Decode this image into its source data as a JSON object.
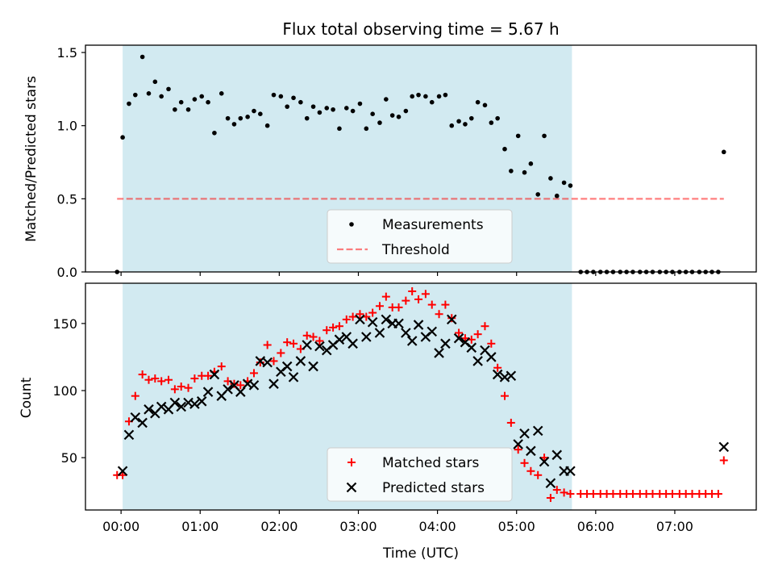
{
  "colors": {
    "shade": "#add8e6",
    "threshold": "#ff0000",
    "matched": "#ff0000",
    "predicted": "#000000",
    "measurement": "#000000"
  },
  "chart_data": [
    {
      "type": "scatter",
      "title": "Flux total observing time = 5.67 h",
      "xlabel": "",
      "ylabel": "Matched/Predicted stars",
      "xlim": [
        -0.45,
        8.03
      ],
      "ylim": [
        0,
        1.55
      ],
      "yticks": [
        "0.0",
        "0.5",
        "1.0",
        "1.5"
      ],
      "shaded_interval": [
        0.02,
        5.7
      ],
      "threshold": 0.5,
      "threshold_range": [
        -0.05,
        7.62
      ],
      "legend": {
        "position": "lower center",
        "entries": [
          "Measurements",
          "Threshold"
        ]
      },
      "series": [
        {
          "name": "Measurements",
          "x": [
            -0.05,
            0.02,
            0.1,
            0.18,
            0.27,
            0.35,
            0.43,
            0.51,
            0.6,
            0.68,
            0.76,
            0.85,
            0.93,
            1.02,
            1.1,
            1.18,
            1.27,
            1.35,
            1.43,
            1.51,
            1.6,
            1.68,
            1.76,
            1.85,
            1.93,
            2.02,
            2.1,
            2.18,
            2.27,
            2.35,
            2.43,
            2.51,
            2.6,
            2.68,
            2.76,
            2.85,
            2.93,
            3.02,
            3.1,
            3.18,
            3.27,
            3.35,
            3.43,
            3.51,
            3.6,
            3.68,
            3.76,
            3.85,
            3.93,
            4.02,
            4.1,
            4.18,
            4.27,
            4.35,
            4.43,
            4.51,
            4.6,
            4.68,
            4.76,
            4.85,
            4.93,
            5.02,
            5.1,
            5.18,
            5.27,
            5.35,
            5.43,
            5.51,
            5.6,
            5.68,
            5.81,
            5.89,
            5.97,
            6.06,
            6.14,
            6.22,
            6.31,
            6.39,
            6.47,
            6.56,
            6.64,
            6.72,
            6.81,
            6.89,
            6.97,
            7.06,
            7.14,
            7.22,
            7.31,
            7.39,
            7.47,
            7.55,
            7.62
          ],
          "y": [
            0.0,
            0.92,
            1.15,
            1.21,
            1.47,
            1.22,
            1.3,
            1.2,
            1.25,
            1.11,
            1.16,
            1.11,
            1.18,
            1.2,
            1.16,
            0.95,
            1.22,
            1.05,
            1.01,
            1.05,
            1.06,
            1.1,
            1.08,
            1.0,
            1.21,
            1.2,
            1.13,
            1.19,
            1.16,
            1.05,
            1.13,
            1.09,
            1.12,
            1.11,
            0.98,
            1.12,
            1.1,
            1.15,
            0.98,
            1.08,
            1.02,
            1.18,
            1.07,
            1.06,
            1.1,
            1.2,
            1.21,
            1.2,
            1.16,
            1.2,
            1.21,
            1.0,
            1.03,
            1.01,
            1.05,
            1.16,
            1.14,
            1.02,
            1.05,
            0.84,
            0.69,
            0.93,
            0.68,
            0.74,
            0.53,
            0.93,
            0.64,
            0.52,
            0.61,
            0.59,
            0.0,
            0.0,
            0.0,
            0.0,
            0.0,
            0.0,
            0.0,
            0.0,
            0.0,
            0.0,
            0.0,
            0.0,
            0.0,
            0.0,
            0.0,
            0.0,
            0.0,
            0.0,
            0.0,
            0.0,
            0.0,
            0.0,
            0.82
          ]
        }
      ]
    },
    {
      "type": "scatter",
      "title": "",
      "xlabel": "Time (UTC)",
      "ylabel": "Count",
      "xlim": [
        -0.45,
        8.03
      ],
      "ylim": [
        11,
        180
      ],
      "yticks": [
        "50",
        "100",
        "150"
      ],
      "xticks": [
        "00:00",
        "01:00",
        "02:00",
        "03:00",
        "04:00",
        "05:00",
        "06:00",
        "07:00"
      ],
      "shaded_interval": [
        0.02,
        5.7
      ],
      "legend": {
        "position": "lower center",
        "entries": [
          "Matched stars",
          "Predicted stars"
        ]
      },
      "series": [
        {
          "name": "Matched stars",
          "x": [
            -0.05,
            0.02,
            0.1,
            0.18,
            0.27,
            0.35,
            0.43,
            0.51,
            0.6,
            0.68,
            0.76,
            0.85,
            0.93,
            1.02,
            1.1,
            1.18,
            1.27,
            1.35,
            1.43,
            1.51,
            1.6,
            1.68,
            1.76,
            1.85,
            1.93,
            2.02,
            2.1,
            2.18,
            2.27,
            2.35,
            2.43,
            2.51,
            2.6,
            2.68,
            2.76,
            2.85,
            2.93,
            3.02,
            3.1,
            3.18,
            3.27,
            3.35,
            3.43,
            3.51,
            3.6,
            3.68,
            3.76,
            3.85,
            3.93,
            4.02,
            4.1,
            4.18,
            4.27,
            4.35,
            4.43,
            4.51,
            4.6,
            4.68,
            4.76,
            4.85,
            4.93,
            5.02,
            5.1,
            5.18,
            5.27,
            5.35,
            5.43,
            5.51,
            5.6,
            5.68,
            5.81,
            5.89,
            5.97,
            6.06,
            6.14,
            6.22,
            6.31,
            6.39,
            6.47,
            6.56,
            6.64,
            6.72,
            6.81,
            6.89,
            6.97,
            7.06,
            7.14,
            7.22,
            7.31,
            7.39,
            7.47,
            7.55,
            7.62
          ],
          "y": [
            37,
            37,
            77,
            96,
            112,
            108,
            109,
            107,
            108,
            101,
            103,
            102,
            109,
            111,
            111,
            114,
            118,
            107,
            105,
            104,
            107,
            113,
            121,
            134,
            122,
            128,
            136,
            135,
            131,
            141,
            140,
            137,
            145,
            147,
            148,
            153,
            155,
            157,
            155,
            158,
            163,
            170,
            162,
            162,
            167,
            174,
            168,
            172,
            164,
            157,
            164,
            154,
            143,
            139,
            138,
            142,
            148,
            135,
            117,
            96,
            76,
            56,
            46,
            40,
            37,
            50,
            20,
            26,
            24,
            23,
            23,
            23,
            23,
            23,
            23,
            23,
            23,
            23,
            23,
            23,
            23,
            23,
            23,
            23,
            23,
            23,
            23,
            23,
            23,
            23,
            23,
            23,
            48
          ]
        },
        {
          "name": "Predicted stars",
          "x": [
            0.02,
            0.1,
            0.18,
            0.27,
            0.35,
            0.43,
            0.51,
            0.6,
            0.68,
            0.76,
            0.85,
            0.93,
            1.02,
            1.1,
            1.18,
            1.27,
            1.35,
            1.43,
            1.51,
            1.6,
            1.68,
            1.76,
            1.85,
            1.93,
            2.02,
            2.1,
            2.18,
            2.27,
            2.35,
            2.43,
            2.51,
            2.6,
            2.68,
            2.76,
            2.85,
            2.93,
            3.02,
            3.1,
            3.18,
            3.27,
            3.35,
            3.43,
            3.51,
            3.6,
            3.68,
            3.76,
            3.85,
            3.93,
            4.02,
            4.1,
            4.18,
            4.27,
            4.35,
            4.43,
            4.51,
            4.6,
            4.68,
            4.76,
            4.85,
            4.93,
            5.02,
            5.1,
            5.18,
            5.27,
            5.35,
            5.43,
            5.51,
            5.6,
            5.68,
            7.62
          ],
          "y": [
            40,
            67,
            80,
            76,
            86,
            83,
            88,
            86,
            91,
            88,
            91,
            90,
            92,
            99,
            112,
            96,
            101,
            104,
            99,
            105,
            104,
            122,
            121,
            105,
            114,
            118,
            110,
            122,
            134,
            118,
            133,
            130,
            134,
            138,
            140,
            135,
            153,
            140,
            151,
            143,
            153,
            150,
            150,
            143,
            137,
            149,
            140,
            144,
            128,
            135,
            153,
            139,
            136,
            132,
            122,
            130,
            125,
            112,
            110,
            111,
            60,
            68,
            55,
            70,
            47,
            31,
            52,
            40,
            40,
            58
          ]
        }
      ]
    }
  ]
}
